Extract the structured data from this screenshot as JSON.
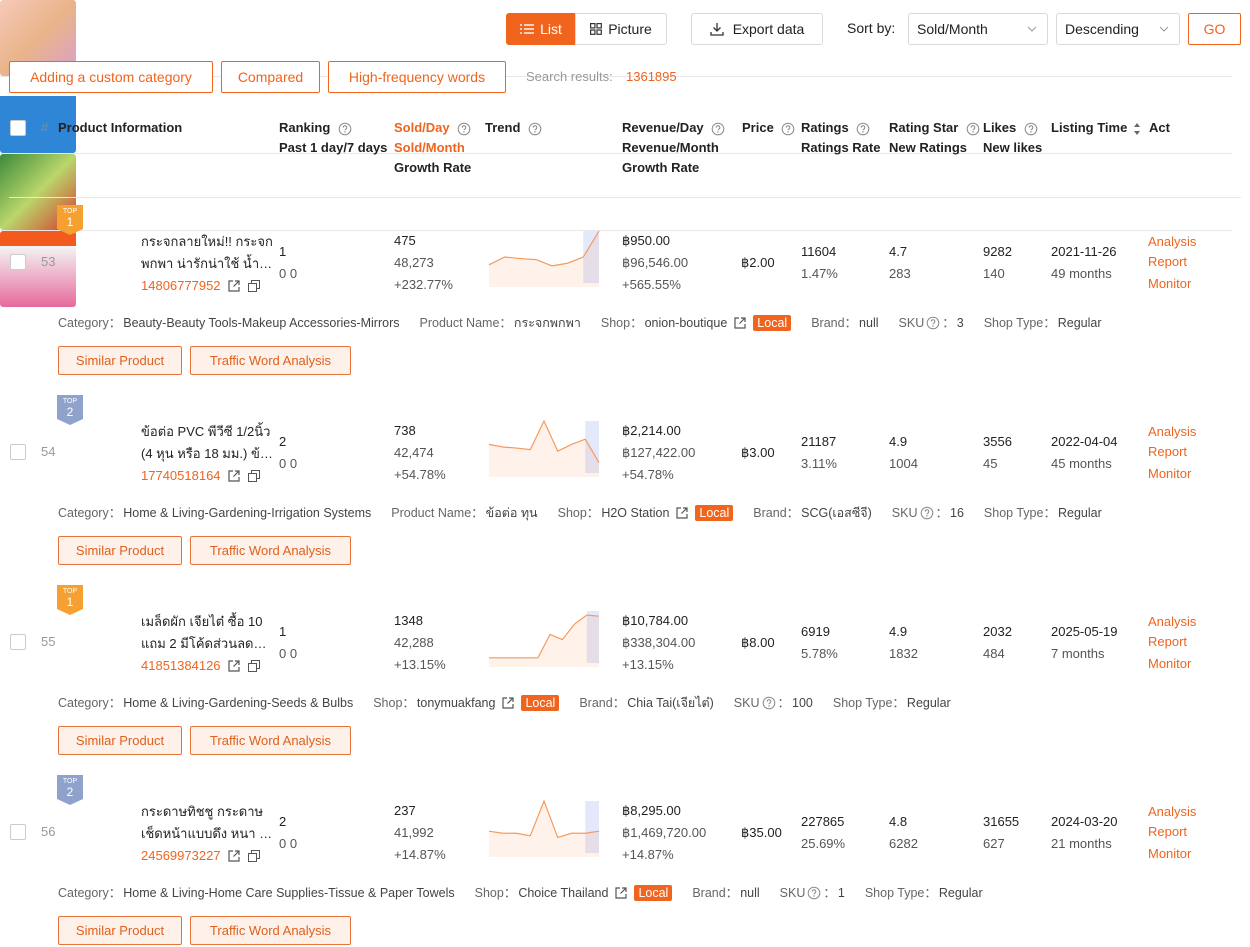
{
  "toolbar": {
    "view_list": "List",
    "view_picture": "Picture",
    "export": "Export data",
    "sort_label": "Sort by:",
    "sort_field": "Sold/Month",
    "sort_order": "Descending",
    "go": "GO"
  },
  "actions": [
    "Adding a custom category",
    "Compared",
    "High-frequency words"
  ],
  "search": {
    "label": "Search results:",
    "count": "1361895"
  },
  "headers": [
    [
      "#"
    ],
    [
      "Product Information"
    ],
    [
      "Ranking",
      "Past 1 day/7 days"
    ],
    [
      "Sold/Day",
      "Sold/Month",
      "Growth Rate"
    ],
    [
      "Trend"
    ],
    [
      "Revenue/Day",
      "Revenue/Month",
      "Growth Rate"
    ],
    [
      "Price"
    ],
    [
      "Ratings",
      "Ratings Rate"
    ],
    [
      "Rating Star",
      "New Ratings"
    ],
    [
      "Likes",
      "New likes"
    ],
    [
      "Listing Time"
    ],
    [
      "Act"
    ]
  ],
  "rows": [
    {
      "index": "53",
      "badge": {
        "top": "TOP",
        "rank": "1",
        "color": "#f5a030"
      },
      "title": "กระจกลายใหม่!! กระจกพกพา น่ารักน่าใช้ น้ำ…",
      "id": "14806777952",
      "ranking": [
        "1",
        "0 0"
      ],
      "sold": [
        "475",
        "48,273",
        "+232.77%"
      ],
      "trend": [
        0.35,
        0.5,
        0.47,
        0.45,
        0.33,
        0.38,
        0.5,
        1.0
      ],
      "revenue": [
        "฿950.00",
        "฿96,546.00",
        "+565.55%"
      ],
      "price": "฿2.00",
      "ratings": [
        "11604",
        "1.47%"
      ],
      "star": [
        "4.7",
        "283"
      ],
      "likes": [
        "9282",
        "140"
      ],
      "listing": [
        "2021-11-26",
        "49 months"
      ],
      "acts": [
        "Analysis",
        "Report",
        "Monitor"
      ],
      "details": {
        "category": {
          "label": "Category：",
          "value": "Beauty-Beauty Tools-Makeup Accessories-Mirrors"
        },
        "product_name": {
          "label": "Product Name：",
          "value": "กระจกพกพา"
        },
        "shop": {
          "label": "Shop：",
          "value": "onion-boutique"
        },
        "brand": {
          "label": "Brand：",
          "value": "null"
        },
        "sku": {
          "label": "SKU",
          "sep": "：",
          "value": "3"
        },
        "shop_type": {
          "label": "Shop Type：",
          "value": "Regular"
        }
      },
      "local": "Local",
      "buttons": [
        "Similar Product",
        "Traffic Word Analysis"
      ]
    },
    {
      "index": "54",
      "badge": {
        "top": "TOP",
        "rank": "2",
        "color": "#8ea2cc"
      },
      "title": "ข้อต่อ PVC พีวีซี 1/2นิ้ว (4 หุน หรือ 18 มม.) ข้…",
      "id": "17740518164",
      "ranking": [
        "2",
        "0 0"
      ],
      "sold": [
        "738",
        "42,474",
        "+54.78%"
      ],
      "trend": [
        0.55,
        0.5,
        0.48,
        0.45,
        1.0,
        0.42,
        0.55,
        0.65,
        0.2
      ],
      "revenue": [
        "฿2,214.00",
        "฿127,422.00",
        "+54.78%"
      ],
      "price": "฿3.00",
      "ratings": [
        "21187",
        "3.11%"
      ],
      "star": [
        "4.9",
        "1004"
      ],
      "likes": [
        "3556",
        "45"
      ],
      "listing": [
        "2022-04-04",
        "45 months"
      ],
      "acts": [
        "Analysis",
        "Report",
        "Monitor"
      ],
      "details": {
        "category": {
          "label": "Category：",
          "value": "Home & Living-Gardening-Irrigation Systems"
        },
        "product_name": {
          "label": "Product Name：",
          "value": "ข้อต่อ ทุน"
        },
        "shop": {
          "label": "Shop：",
          "value": "H2O Station"
        },
        "brand": {
          "label": "Brand：",
          "value": "SCG(เอสซีจี)"
        },
        "sku": {
          "label": "SKU",
          "sep": "：",
          "value": "16"
        },
        "shop_type": {
          "label": "Shop Type：",
          "value": "Regular"
        }
      },
      "local": "Local",
      "buttons": [
        "Similar Product",
        "Traffic Word Analysis"
      ]
    },
    {
      "index": "55",
      "badge": {
        "top": "TOP",
        "rank": "1",
        "color": "#f5a030"
      },
      "title": "เมล็ดผัก เจียไต๋ ซื้อ 10 แถม 2 มีโค้ดส่วนลด (เ…",
      "id": "41851384126",
      "ranking": [
        "1",
        "0 0"
      ],
      "sold": [
        "1348",
        "42,288",
        "+13.15%"
      ],
      "trend": [
        0.1,
        0.1,
        0.1,
        0.1,
        0.1,
        0.55,
        0.45,
        0.75,
        0.92,
        0.9
      ],
      "revenue": [
        "฿10,784.00",
        "฿338,304.00",
        "+13.15%"
      ],
      "price": "฿8.00",
      "ratings": [
        "6919",
        "5.78%"
      ],
      "star": [
        "4.9",
        "1832"
      ],
      "likes": [
        "2032",
        "484"
      ],
      "listing": [
        "2025-05-19",
        "7 months"
      ],
      "acts": [
        "Analysis",
        "Report",
        "Monitor"
      ],
      "details": {
        "category": {
          "label": "Category：",
          "value": "Home & Living-Gardening-Seeds & Bulbs"
        },
        "shop": {
          "label": "Shop：",
          "value": "tonymuakfang"
        },
        "brand": {
          "label": "Brand：",
          "value": "Chia Tai(เจียไต๋)"
        },
        "sku": {
          "label": "SKU",
          "sep": "：",
          "value": "100"
        },
        "shop_type": {
          "label": "Shop Type：",
          "value": "Regular"
        }
      },
      "local": "Local",
      "buttons": [
        "Similar Product",
        "Traffic Word Analysis"
      ]
    },
    {
      "index": "56",
      "badge": {
        "top": "TOP",
        "rank": "2",
        "color": "#8ea2cc"
      },
      "title": "กระดาษทิชชู กระดาษเช็ดหน้าแบบดึง หนา 3 …",
      "id": "24569973227",
      "ranking": [
        "2",
        "0 0"
      ],
      "sold": [
        "237",
        "41,992",
        "+14.87%"
      ],
      "trend": [
        0.42,
        0.38,
        0.38,
        0.33,
        1.0,
        0.3,
        0.38,
        0.38,
        0.42
      ],
      "revenue": [
        "฿8,295.00",
        "฿1,469,720.00",
        "+14.87%"
      ],
      "price": "฿35.00",
      "ratings": [
        "227865",
        "25.69%"
      ],
      "star": [
        "4.8",
        "6282"
      ],
      "likes": [
        "31655",
        "627"
      ],
      "listing": [
        "2024-03-20",
        "21 months"
      ],
      "acts": [
        "Analysis",
        "Report",
        "Monitor"
      ],
      "details": {
        "category": {
          "label": "Category：",
          "value": "Home & Living-Home Care Supplies-Tissue & Paper Towels"
        },
        "shop": {
          "label": "Shop：",
          "value": "Choice Thailand"
        },
        "brand": {
          "label": "Brand：",
          "value": "null"
        },
        "sku": {
          "label": "SKU",
          "sep": "：",
          "value": "1"
        },
        "shop_type": {
          "label": "Shop Type：",
          "value": "Regular"
        }
      },
      "local": "Local",
      "buttons": [
        "Similar Product",
        "Traffic Word Analysis"
      ]
    }
  ]
}
